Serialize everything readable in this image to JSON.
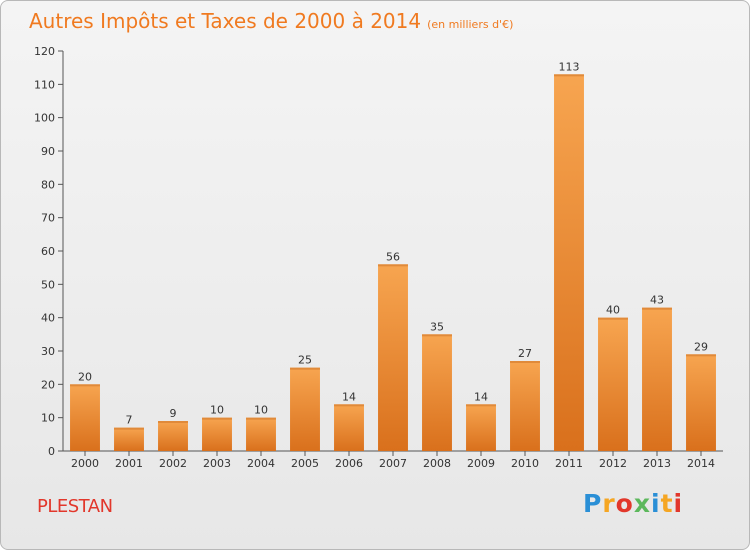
{
  "header": {
    "title": "Autres Impôts et Taxes de 2000 à 2014",
    "subtitle": "(en milliers d'€)"
  },
  "footer": {
    "commune": "PLESTAN",
    "logo_text": "Proxiti"
  },
  "colors": {
    "bar_light": "#f7a550",
    "bar_dark": "#d9701c",
    "title": "#f07a20",
    "commune": "#e2372b"
  },
  "chart_data": {
    "type": "bar",
    "title": "Autres Impôts et Taxes de 2000 à 2014",
    "subtitle": "(en milliers d'€)",
    "categories": [
      "2000",
      "2001",
      "2002",
      "2003",
      "2004",
      "2005",
      "2006",
      "2007",
      "2008",
      "2009",
      "2010",
      "2011",
      "2012",
      "2013",
      "2014"
    ],
    "values": [
      20,
      7,
      9,
      10,
      10,
      25,
      14,
      56,
      35,
      14,
      27,
      113,
      40,
      43,
      29
    ],
    "ylim": [
      0,
      120
    ],
    "yticks": [
      0,
      10,
      20,
      30,
      40,
      50,
      60,
      70,
      80,
      90,
      100,
      110,
      120
    ],
    "grid": false,
    "xlabel": "",
    "ylabel": ""
  }
}
